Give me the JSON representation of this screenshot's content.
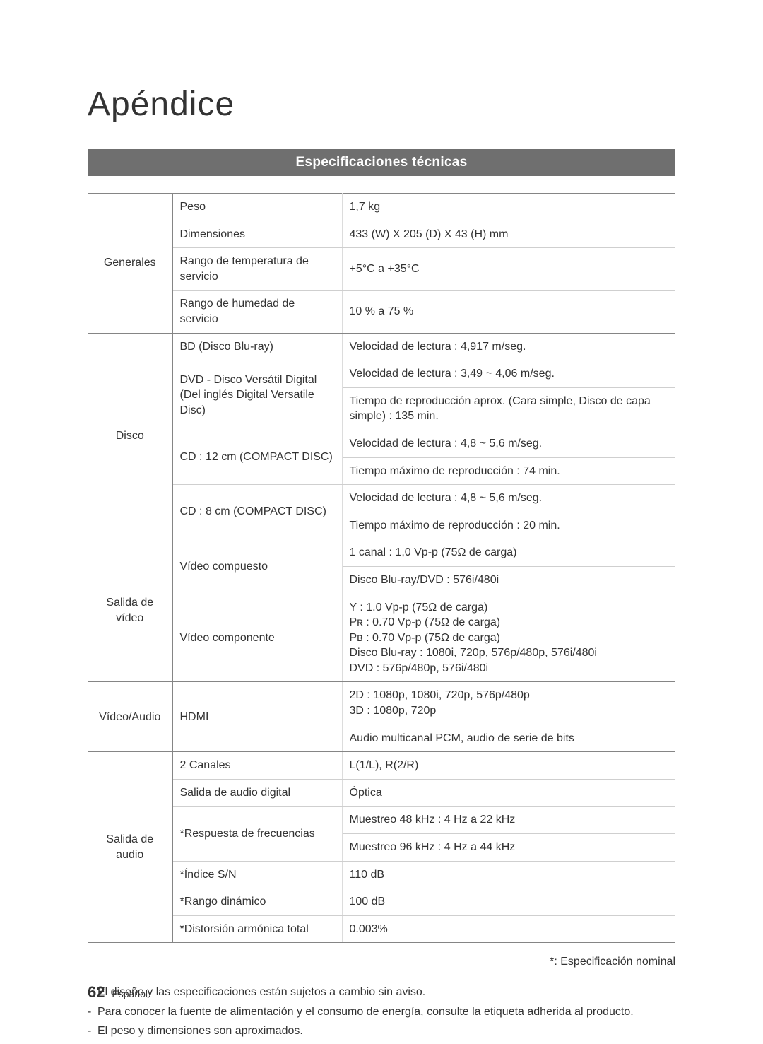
{
  "page": {
    "title": "Apéndice",
    "banner": "Especificaciones técnicas",
    "footnote_right": "*: Especificación nominal",
    "page_number": "62",
    "page_lang": "Español"
  },
  "colors": {
    "banner_bg": "#6f6f6f",
    "banner_text": "#ffffff",
    "text": "#333333",
    "strong_border": "#858585",
    "light_border": "#cfcfcf",
    "sublight_border": "#e6e6e6"
  },
  "typography": {
    "title_fontsize": 48,
    "banner_fontsize": 19,
    "body_fontsize": 16,
    "pagenum_fontsize": 22
  },
  "categories": {
    "generales": "Generales",
    "disco": "Disco",
    "salida_video": "Salida de vídeo",
    "video_audio": "Vídeo/Audio",
    "salida_audio": "Salida de audio"
  },
  "rows": {
    "generales": {
      "peso": {
        "label": "Peso",
        "value": "1,7 kg"
      },
      "dimensiones": {
        "label": "Dimensiones",
        "value": "433 (W) X 205 (D) X 43 (H) mm"
      },
      "temp": {
        "label": "Rango de temperatura de servicio",
        "value": "+5°C a +35°C"
      },
      "humedad": {
        "label": "Rango de humedad de servicio",
        "value": "10 % a 75 %"
      }
    },
    "disco": {
      "bd": {
        "label": "BD (Disco Blu-ray)",
        "value": "Velocidad de lectura : 4,917 m/seg."
      },
      "dvd": {
        "label": "DVD - Disco Versátil Digital\n(Del inglés Digital Versatile Disc)",
        "v1": "Velocidad de lectura : 3,49 ~ 4,06 m/seg.",
        "v2": "Tiempo de reproducción aprox. (Cara simple, Disco de capa simple) : 135 min."
      },
      "cd12": {
        "label": "CD : 12 cm (COMPACT DISC)",
        "v1": "Velocidad de lectura : 4,8 ~ 5,6 m/seg.",
        "v2": "Tiempo máximo de reproducción : 74 min."
      },
      "cd8": {
        "label": "CD : 8 cm (COMPACT DISC)",
        "v1": "Velocidad de lectura : 4,8 ~ 5,6 m/seg.",
        "v2": "Tiempo máximo de reproducción : 20 min."
      }
    },
    "salida_video": {
      "compuesto": {
        "label": "Vídeo compuesto",
        "v1": "1 canal : 1,0 Vp-p (75Ω de carga)",
        "v2": "Disco Blu-ray/DVD : 576i/480i"
      },
      "componente": {
        "label": "Vídeo componente",
        "value": "Y : 1.0 Vp-p (75Ω de carga)\nPʀ : 0.70 Vp-p (75Ω de carga)\nPв : 0.70 Vp-p (75Ω de carga)\nDisco Blu-ray : 1080i, 720p, 576p/480p, 576i/480i\nDVD : 576p/480p, 576i/480i"
      }
    },
    "video_audio": {
      "hdmi": {
        "label": "HDMI",
        "v1": "2D : 1080p, 1080i, 720p, 576p/480p\n3D : 1080p, 720p",
        "v2": "Audio multicanal PCM, audio de serie de bits"
      }
    },
    "salida_audio": {
      "canales": {
        "label": "2 Canales",
        "value": "L(1/L), R(2/R)"
      },
      "digital": {
        "label": "Salida de audio digital",
        "value": "Óptica"
      },
      "frecuencias": {
        "label": "*Respuesta de frecuencias",
        "v1": "Muestreo 48 kHz : 4 Hz a 22 kHz",
        "v2": "Muestreo 96 kHz : 4 Hz a 44 kHz"
      },
      "sn": {
        "label": "*Índice S/N",
        "value": "110 dB"
      },
      "rango": {
        "label": "*Rango dinámico",
        "value": "100 dB"
      },
      "distorsion": {
        "label": "*Distorsión armónica total",
        "value": "0.003%"
      }
    }
  },
  "notes": [
    "El diseño y las especificaciones están sujetos a cambio sin aviso.",
    "Para conocer la fuente de alimentación y el consumo de energía, consulte la etiqueta adherida al producto.",
    "El peso y dimensiones son aproximados."
  ]
}
